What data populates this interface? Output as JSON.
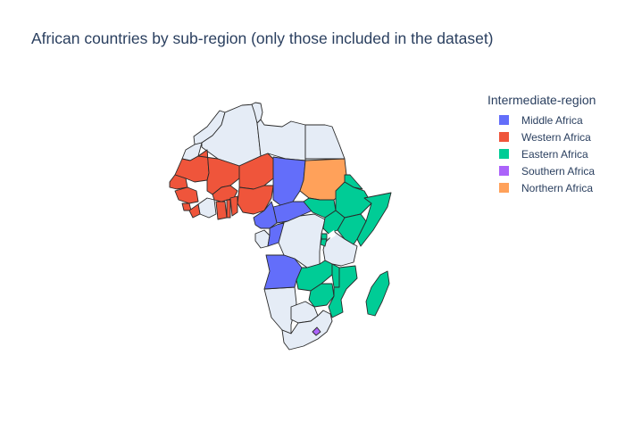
{
  "title": "African countries by sub-region (only those included in the dataset)",
  "legend": {
    "title": "Intermediate-region",
    "items": [
      {
        "label": "Middle Africa",
        "color": "#636efa"
      },
      {
        "label": "Western Africa",
        "color": "#ef553b"
      },
      {
        "label": "Eastern Africa",
        "color": "#00cc96"
      },
      {
        "label": "Southern Africa",
        "color": "#ab63fa"
      },
      {
        "label": "Northern Africa",
        "color": "#ffa15a"
      }
    ]
  },
  "map": {
    "type": "choropleth",
    "scope": "africa",
    "no_data_color": "#e5ecf6",
    "countries": [
      {
        "name": "Morocco",
        "region": null
      },
      {
        "name": "Western Sahara",
        "region": null
      },
      {
        "name": "Algeria",
        "region": null
      },
      {
        "name": "Tunisia",
        "region": null
      },
      {
        "name": "Libya",
        "region": null
      },
      {
        "name": "Egypt",
        "region": null
      },
      {
        "name": "Mauritania",
        "region": "Western Africa"
      },
      {
        "name": "Mali",
        "region": "Western Africa"
      },
      {
        "name": "Niger",
        "region": "Western Africa"
      },
      {
        "name": "Nigeria",
        "region": "Western Africa"
      },
      {
        "name": "Senegal",
        "region": "Western Africa"
      },
      {
        "name": "Guinea",
        "region": "Western Africa"
      },
      {
        "name": "Sierra Leone",
        "region": "Western Africa"
      },
      {
        "name": "Liberia",
        "region": "Western Africa"
      },
      {
        "name": "Burkina Faso",
        "region": "Western Africa"
      },
      {
        "name": "Ghana",
        "region": "Western Africa"
      },
      {
        "name": "Togo",
        "region": "Western Africa"
      },
      {
        "name": "Benin",
        "region": "Western Africa"
      },
      {
        "name": "Côte d'Ivoire",
        "region": null
      },
      {
        "name": "Chad",
        "region": "Middle Africa"
      },
      {
        "name": "Central African Republic",
        "region": "Middle Africa"
      },
      {
        "name": "Cameroon",
        "region": "Middle Africa"
      },
      {
        "name": "Congo",
        "region": "Middle Africa"
      },
      {
        "name": "Angola",
        "region": "Middle Africa"
      },
      {
        "name": "Gabon",
        "region": null
      },
      {
        "name": "DR Congo",
        "region": null
      },
      {
        "name": "Sudan",
        "region": "Northern Africa"
      },
      {
        "name": "South Sudan",
        "region": "Eastern Africa"
      },
      {
        "name": "Ethiopia",
        "region": "Eastern Africa"
      },
      {
        "name": "Eritrea",
        "region": "Eastern Africa"
      },
      {
        "name": "Somalia",
        "region": "Eastern Africa"
      },
      {
        "name": "Kenya",
        "region": "Eastern Africa"
      },
      {
        "name": "Uganda",
        "region": "Eastern Africa"
      },
      {
        "name": "Rwanda",
        "region": "Eastern Africa"
      },
      {
        "name": "Burundi",
        "region": "Eastern Africa"
      },
      {
        "name": "Tanzania",
        "region": null
      },
      {
        "name": "Zambia",
        "region": "Eastern Africa"
      },
      {
        "name": "Malawi",
        "region": "Eastern Africa"
      },
      {
        "name": "Mozambique",
        "region": "Eastern Africa"
      },
      {
        "name": "Zimbabwe",
        "region": "Eastern Africa"
      },
      {
        "name": "Madagascar",
        "region": "Eastern Africa"
      },
      {
        "name": "Namibia",
        "region": null
      },
      {
        "name": "Botswana",
        "region": null
      },
      {
        "name": "South Africa",
        "region": null
      },
      {
        "name": "Lesotho",
        "region": "Southern Africa"
      }
    ]
  }
}
